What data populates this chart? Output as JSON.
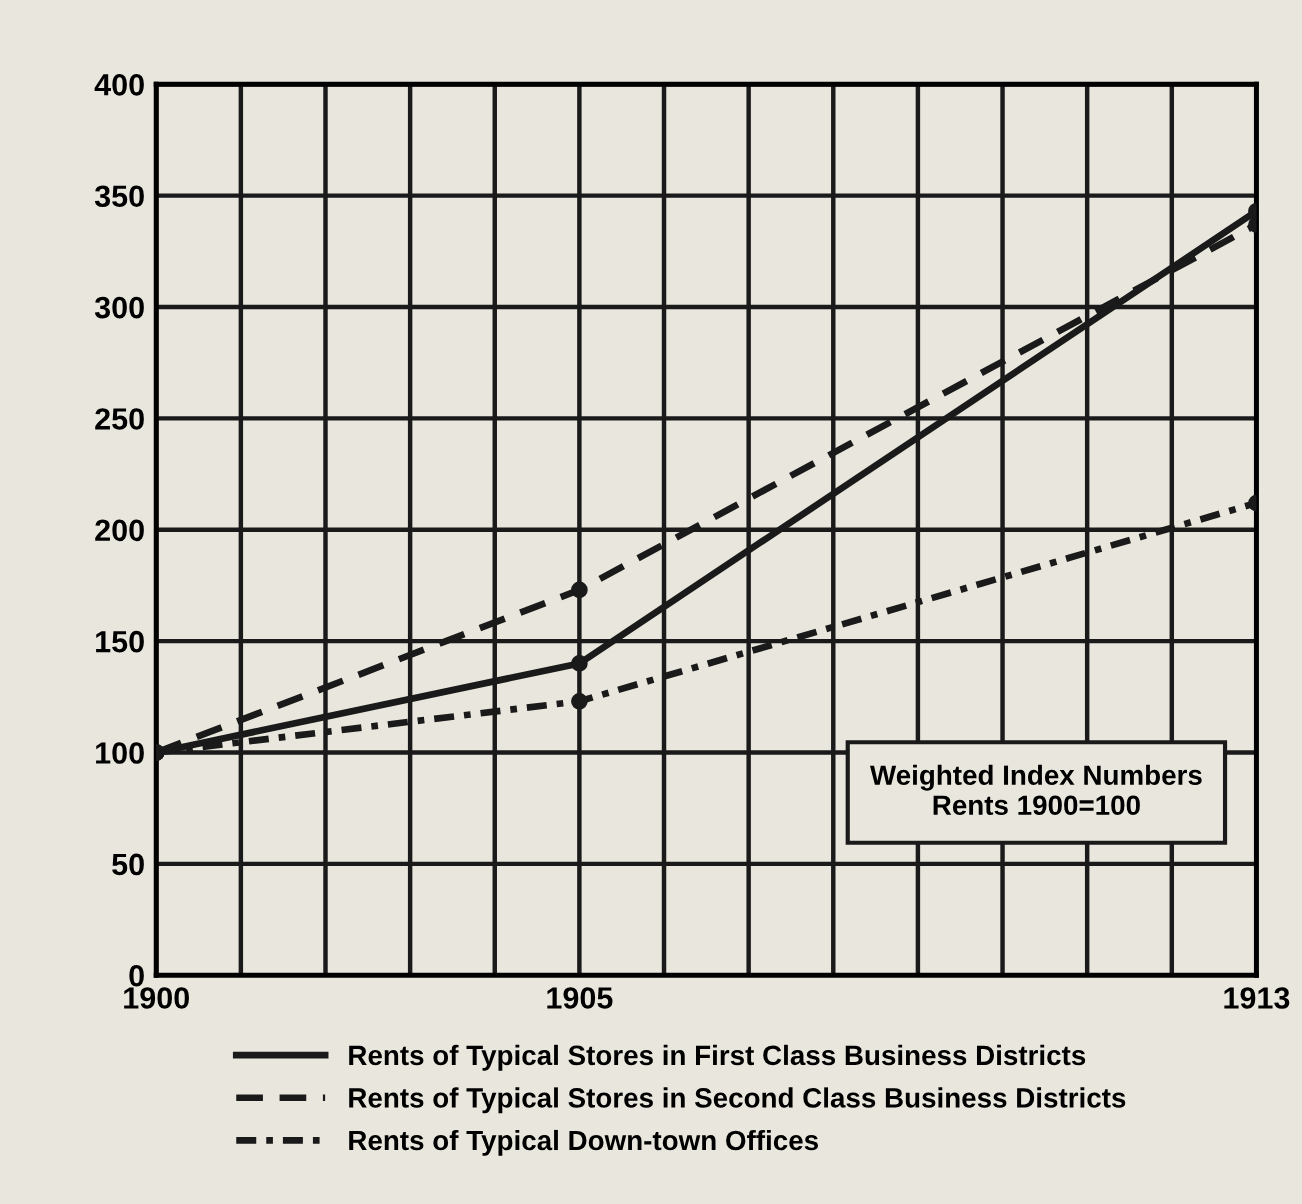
{
  "chart_data": {
    "type": "line",
    "x": [
      1900,
      1905,
      1913
    ],
    "series": [
      {
        "name": "Rents of Typical Stores in First Class Business Districts",
        "color": "#1a1a1a",
        "values": [
          100,
          140,
          343
        ],
        "line_style": "solid"
      },
      {
        "name": "Rents of Typical Stores in Second Class Business Districts",
        "color": "#1a1a1a",
        "values": [
          100,
          173,
          337
        ],
        "line_style": "dashed"
      },
      {
        "name": "Rents of Typical Down-town Offices",
        "color": "#1a1a1a",
        "values": [
          100,
          123,
          212
        ],
        "line_style": "dashdot"
      }
    ],
    "xlim": [
      1900,
      1913
    ],
    "xticks": [
      1900,
      {
        "value": 1901,
        "label": null
      },
      {
        "value": 1902,
        "label": null
      },
      {
        "value": 1903,
        "label": null
      },
      {
        "value": 1904,
        "label": null
      },
      1905,
      {
        "value": 1906,
        "label": null
      },
      {
        "value": 1907,
        "label": null
      },
      {
        "value": 1908,
        "label": null
      },
      {
        "value": 1909,
        "label": null
      },
      {
        "value": 1910,
        "label": null
      },
      {
        "value": 1911,
        "label": null
      },
      {
        "value": 1912,
        "label": null
      },
      1913
    ],
    "ylim": [
      0,
      400
    ],
    "yticks": [
      0,
      50,
      100,
      150,
      200,
      250,
      300,
      350,
      400
    ],
    "grid": true,
    "marker": "circle",
    "legend": "bottom",
    "annotations": [
      "Weighted Index Numbers\nRents 1900=100"
    ]
  }
}
